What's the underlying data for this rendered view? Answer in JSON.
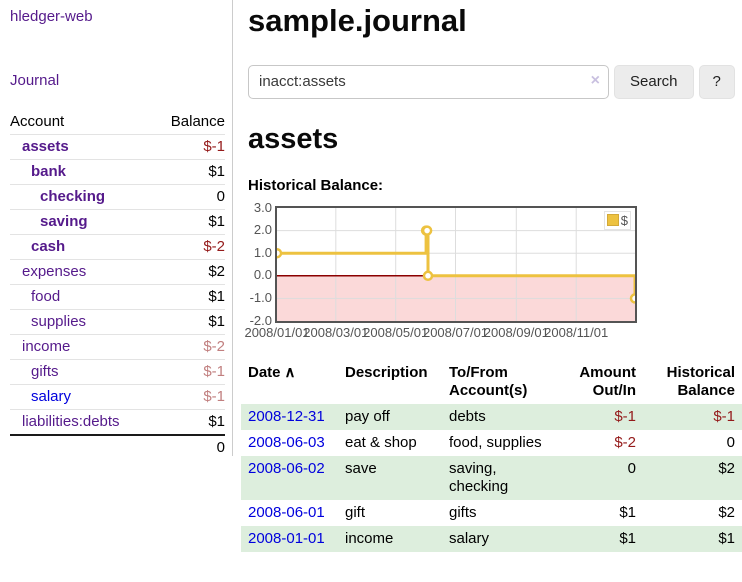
{
  "colors": {
    "accent_purple": "#551a8b",
    "link_blue": "#0000dd",
    "negative_red": "#941a1a",
    "negative_faded_red": "#c17f7f",
    "row_stripe_green": "#ddeedd",
    "chart_line_gold": "#edc240",
    "chart_negative_fill": "#fbd9d9",
    "chart_zero_line": "#8b0000",
    "chart_grid": "#dddddd",
    "chart_border": "#545454"
  },
  "sidebar": {
    "brand": "hledger-web",
    "journal_link": "Journal",
    "accounts_table": {
      "headers": {
        "account": "Account",
        "balance": "Balance"
      },
      "rows": [
        {
          "name": "assets",
          "balance": "$-1",
          "indent": 1,
          "bold": true,
          "balance_style": "neg"
        },
        {
          "name": "bank",
          "balance": "$1",
          "indent": 2,
          "bold": true,
          "balance_style": "pos"
        },
        {
          "name": "checking",
          "balance": "0",
          "indent": 3,
          "bold": true,
          "balance_style": "pos"
        },
        {
          "name": "saving",
          "balance": "$1",
          "indent": 3,
          "bold": true,
          "balance_style": "pos"
        },
        {
          "name": "cash",
          "balance": "$-2",
          "indent": 2,
          "bold": true,
          "balance_style": "neg"
        },
        {
          "name": "expenses",
          "balance": "$2",
          "indent": 1,
          "bold": false,
          "balance_style": "pos"
        },
        {
          "name": "food",
          "balance": "$1",
          "indent": 2,
          "bold": false,
          "balance_style": "pos"
        },
        {
          "name": "supplies",
          "balance": "$1",
          "indent": 2,
          "bold": false,
          "balance_style": "pos"
        },
        {
          "name": "income",
          "balance": "$-2",
          "indent": 1,
          "bold": false,
          "balance_style": "neg-faded"
        },
        {
          "name": "gifts",
          "balance": "$-1",
          "indent": 2,
          "bold": false,
          "balance_style": "neg-faded"
        },
        {
          "name": "salary",
          "balance": "$-1",
          "indent": 2,
          "bold": false,
          "balance_style": "neg-faded",
          "link_style": "unvisited"
        },
        {
          "name": "liabilities:debts",
          "balance": "$1",
          "indent": 1,
          "bold": false,
          "balance_style": "pos"
        }
      ],
      "total": "0"
    }
  },
  "header": {
    "title": "sample.journal"
  },
  "search": {
    "value": "inacct:assets",
    "clear_icon": "×",
    "button_label": "Search",
    "help_label": "?"
  },
  "account_page": {
    "heading": "assets",
    "chart_label": "Historical Balance:"
  },
  "chart_data": {
    "type": "line",
    "title": "Historical Balance",
    "series": [
      {
        "name": "$",
        "color": "#edc240",
        "step": true,
        "points": [
          {
            "x": "2008-01-01",
            "y": 1
          },
          {
            "x": "2008-06-01",
            "y": 2
          },
          {
            "x": "2008-06-02",
            "y": 2
          },
          {
            "x": "2008-06-03",
            "y": 0
          },
          {
            "x": "2008-12-31",
            "y": -1
          }
        ]
      }
    ],
    "x_ticks": [
      "2008/01/01",
      "2008/03/01",
      "2008/05/01",
      "2008/07/01",
      "2008/09/01",
      "2008/11/01"
    ],
    "y_ticks": [
      "3.0",
      "2.0",
      "1.0",
      "0.0",
      "-1.0",
      "-2.0"
    ],
    "ylim": [
      -2,
      3
    ],
    "grid": true,
    "negative_region_color": "#fbd9d9",
    "zero_line_color": "#8b0000",
    "legend": {
      "label": "$",
      "position": "top-right"
    }
  },
  "register_table": {
    "headers": {
      "date": "Date",
      "description": "Description",
      "accounts": "To/From Account(s)",
      "amount": "Amount Out/In",
      "balance": "Historical Balance"
    },
    "sort_icon": "∧",
    "rows": [
      {
        "date": "2008-12-31",
        "description": "pay off",
        "accounts": "debts",
        "amount": "$-1",
        "amount_style": "neg",
        "balance": "$-1",
        "balance_style": "neg"
      },
      {
        "date": "2008-06-03",
        "description": "eat & shop",
        "accounts": "food, supplies",
        "amount": "$-2",
        "amount_style": "neg",
        "balance": "0",
        "balance_style": "pos"
      },
      {
        "date": "2008-06-02",
        "description": "save",
        "accounts": "saving, checking",
        "amount": "0",
        "amount_style": "pos",
        "balance": "$2",
        "balance_style": "pos"
      },
      {
        "date": "2008-06-01",
        "description": "gift",
        "accounts": "gifts",
        "amount": "$1",
        "amount_style": "pos",
        "balance": "$2",
        "balance_style": "pos"
      },
      {
        "date": "2008-01-01",
        "description": "income",
        "accounts": "salary",
        "amount": "$1",
        "amount_style": "pos",
        "balance": "$1",
        "balance_style": "pos"
      }
    ]
  }
}
